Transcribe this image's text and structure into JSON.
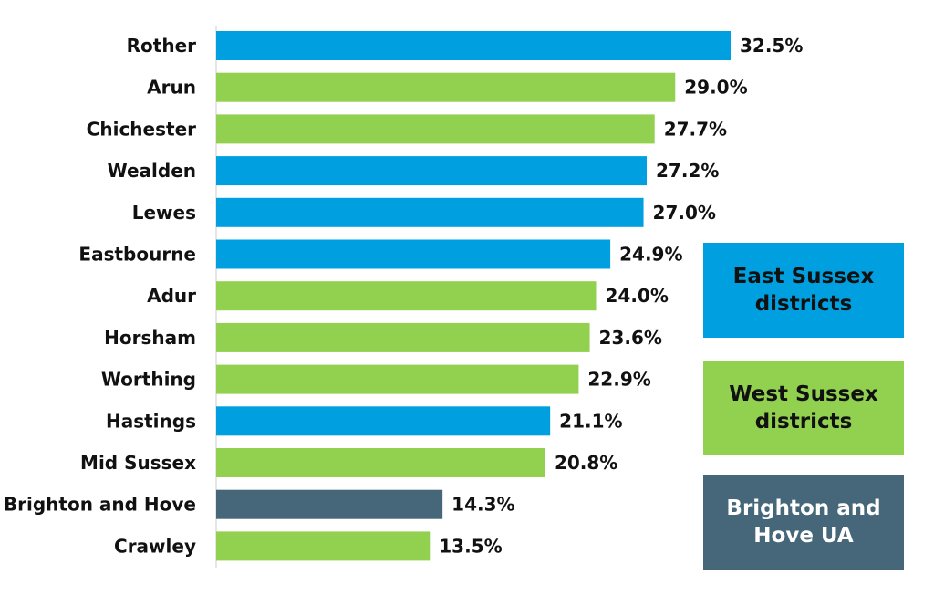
{
  "chart_data": {
    "type": "bar",
    "orientation": "horizontal",
    "categories": [
      "Rother",
      "Arun",
      "Chichester",
      "Wealden",
      "Lewes",
      "Eastbourne",
      "Adur",
      "Horsham",
      "Worthing",
      "Hastings",
      "Mid Sussex",
      "Brighton and Hove",
      "Crawley"
    ],
    "values": [
      32.5,
      29.0,
      27.7,
      27.2,
      27.0,
      24.9,
      24.0,
      23.6,
      22.9,
      21.1,
      20.8,
      14.3,
      13.5
    ],
    "value_labels": [
      "32.5%",
      "29.0%",
      "27.7%",
      "27.2%",
      "27.0%",
      "24.9%",
      "24.0%",
      "23.6%",
      "22.9%",
      "21.1%",
      "20.8%",
      "14.3%",
      "13.5%"
    ],
    "groups": [
      "east",
      "west",
      "west",
      "east",
      "east",
      "east",
      "west",
      "west",
      "west",
      "east",
      "west",
      "bh",
      "west"
    ],
    "xlim": [
      0,
      32.5
    ],
    "grid": false,
    "legend_placement": "right",
    "legend": [
      {
        "key": "east",
        "label": "East Sussex districts",
        "color": "#00a0e0"
      },
      {
        "key": "west",
        "label": "West Sussex districts",
        "color": "#92d050"
      },
      {
        "key": "bh",
        "label": "Brighton and Hove UA",
        "color": "#456779"
      }
    ]
  }
}
